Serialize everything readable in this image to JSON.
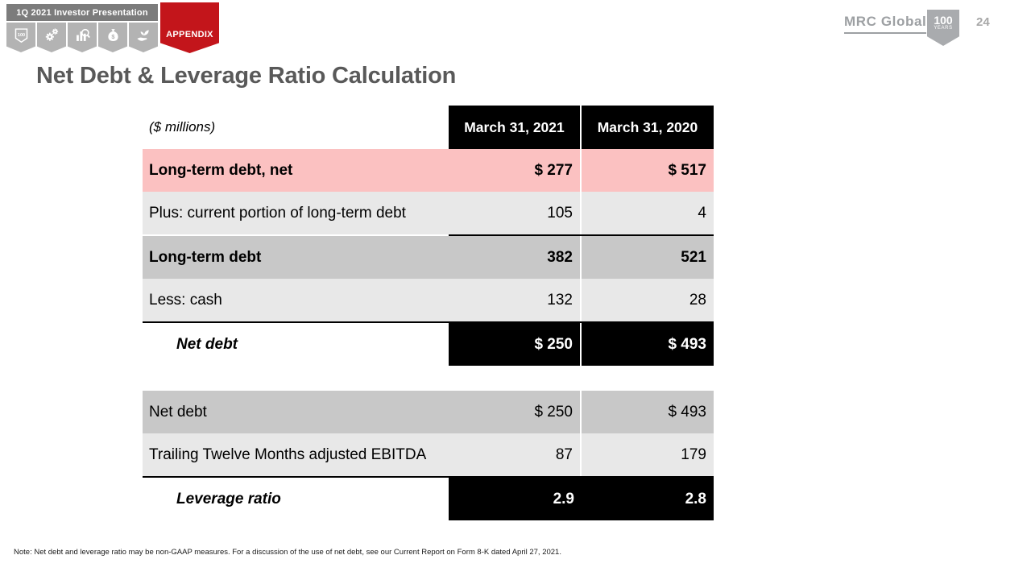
{
  "topbar": {
    "presentation_title": "1Q 2021 Investor Presentation",
    "appendix_label": "APPENDIX",
    "tabs": [
      {
        "icon": "badge-100-icon"
      },
      {
        "icon": "gears-icon"
      },
      {
        "icon": "chart-magnifier-icon"
      },
      {
        "icon": "money-bag-icon"
      },
      {
        "icon": "plant-hand-icon"
      }
    ]
  },
  "branding": {
    "logo_text": "MRC Global",
    "badge_line1": "100",
    "badge_line2": "YEARS",
    "page_number": "24"
  },
  "title": "Net Debt & Leverage Ratio Calculation",
  "debt_table": {
    "unit_label": "($ millions)",
    "columns": [
      "March 31, 2021",
      "March 31, 2020"
    ],
    "rows": [
      {
        "label": "Long-term debt, net",
        "values": [
          "$ 277",
          "$ 517"
        ],
        "style": "pink",
        "bold": true
      },
      {
        "label": "Plus: current portion of long-term debt",
        "values": [
          "105",
          "4"
        ],
        "style": "light",
        "bold": false
      },
      {
        "label": "Long-term debt",
        "values": [
          "382",
          "521"
        ],
        "style": "medium",
        "bold": true,
        "border_top": "values"
      },
      {
        "label": "Less: cash",
        "values": [
          "132",
          "28"
        ],
        "style": "light",
        "bold": false
      },
      {
        "label": "Net debt",
        "values": [
          "$ 250",
          "$ 493"
        ],
        "style": "total",
        "bold": true,
        "border_top": "full",
        "divider": true
      }
    ]
  },
  "leverage_table": {
    "rows": [
      {
        "label": "Net debt",
        "values": [
          "$ 250",
          "$ 493"
        ],
        "style": "medium",
        "bold": false
      },
      {
        "label": "Trailing Twelve Months adjusted EBITDA",
        "values": [
          "87",
          "179"
        ],
        "style": "light",
        "bold": false
      },
      {
        "label": "Leverage ratio",
        "values": [
          "2.9",
          "2.8"
        ],
        "style": "total",
        "bold": true,
        "border_top": "full",
        "divider": false
      }
    ]
  },
  "note": "Note: Net debt and leverage ratio may be non-GAAP measures. For a discussion of the use of net debt, see our Current Report on Form 8-K dated April 27, 2021.",
  "colors": {
    "accent_red": "#C3151B",
    "row_pink": "#FBC1C1",
    "row_light": "#E8E8E8",
    "row_medium": "#C8C8C8",
    "header_black": "#000000",
    "title_gray": "#595959",
    "logo_gray": "#9DA0A3",
    "topbar_gray": "#7C7C7C",
    "tab_gray": "#B3B3B3"
  }
}
